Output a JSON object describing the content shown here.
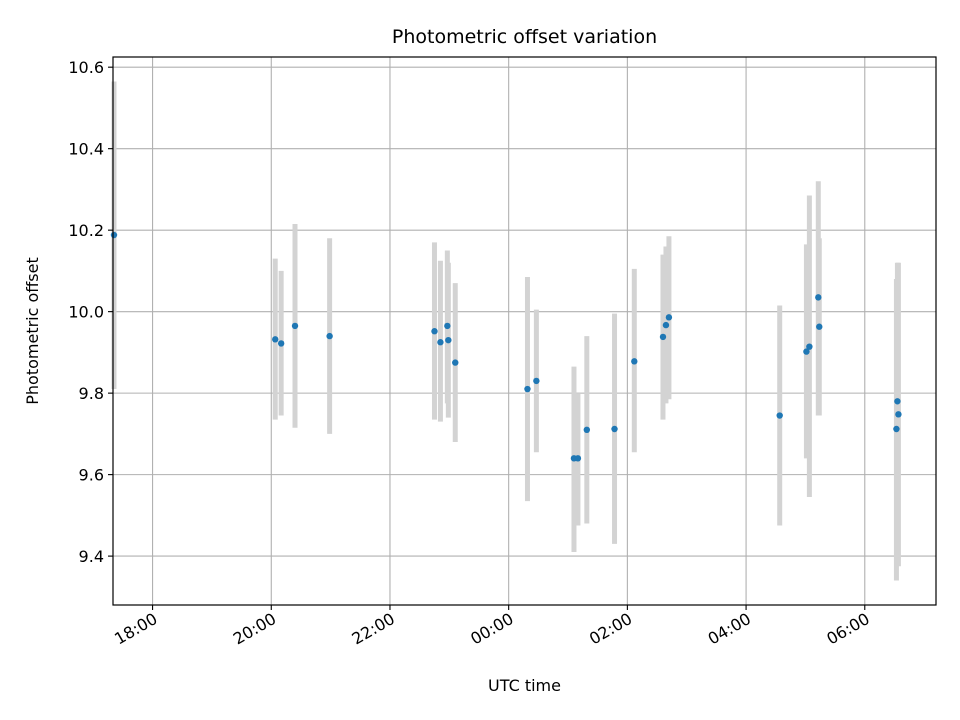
{
  "chart_data": {
    "type": "scatter",
    "title": "Photometric offset variation",
    "xlabel": "UTC time",
    "ylabel": "Photometric offset",
    "x_ticks": [
      "18:00",
      "20:00",
      "22:00",
      "00:00",
      "02:00",
      "04:00",
      "06:00"
    ],
    "y_ticks": [
      "9.4",
      "9.6",
      "9.8",
      "10.0",
      "10.2",
      "10.4",
      "10.6"
    ],
    "xlim": [
      "17:20",
      "07:12"
    ],
    "ylim": [
      9.28,
      10.625
    ],
    "grid": true,
    "marker_color": "#1f77b4",
    "errorbar_color": "#d3d3d3",
    "points": [
      {
        "x": "17:21",
        "y": 10.188,
        "ylow": 9.81,
        "yhigh": 10.565
      },
      {
        "x": "20:04",
        "y": 9.932,
        "ylow": 9.735,
        "yhigh": 10.13
      },
      {
        "x": "20:10",
        "y": 9.922,
        "ylow": 9.745,
        "yhigh": 10.1
      },
      {
        "x": "20:24",
        "y": 9.965,
        "ylow": 9.715,
        "yhigh": 10.215
      },
      {
        "x": "20:59",
        "y": 9.94,
        "ylow": 9.7,
        "yhigh": 10.18
      },
      {
        "x": "22:45",
        "y": 9.952,
        "ylow": 9.735,
        "yhigh": 10.17
      },
      {
        "x": "22:51",
        "y": 9.925,
        "ylow": 9.73,
        "yhigh": 10.125
      },
      {
        "x": "22:58",
        "y": 9.965,
        "ylow": 9.775,
        "yhigh": 10.15
      },
      {
        "x": "22:59",
        "y": 9.93,
        "ylow": 9.74,
        "yhigh": 10.12
      },
      {
        "x": "23:06",
        "y": 9.875,
        "ylow": 9.68,
        "yhigh": 10.07
      },
      {
        "x": "00:19",
        "y": 9.81,
        "ylow": 9.535,
        "yhigh": 10.085
      },
      {
        "x": "00:28",
        "y": 9.83,
        "ylow": 9.655,
        "yhigh": 10.005
      },
      {
        "x": "01:06",
        "y": 9.64,
        "ylow": 9.41,
        "yhigh": 9.865
      },
      {
        "x": "01:10",
        "y": 9.64,
        "ylow": 9.475,
        "yhigh": 9.8
      },
      {
        "x": "01:19",
        "y": 9.71,
        "ylow": 9.48,
        "yhigh": 9.94
      },
      {
        "x": "01:47",
        "y": 9.712,
        "ylow": 9.43,
        "yhigh": 9.995
      },
      {
        "x": "02:07",
        "y": 9.878,
        "ylow": 9.655,
        "yhigh": 10.105
      },
      {
        "x": "02:36",
        "y": 9.938,
        "ylow": 9.735,
        "yhigh": 10.14
      },
      {
        "x": "02:39",
        "y": 9.967,
        "ylow": 9.775,
        "yhigh": 10.16
      },
      {
        "x": "02:42",
        "y": 9.986,
        "ylow": 9.785,
        "yhigh": 10.185
      },
      {
        "x": "04:34",
        "y": 9.745,
        "ylow": 9.475,
        "yhigh": 10.015
      },
      {
        "x": "05:01",
        "y": 9.902,
        "ylow": 9.64,
        "yhigh": 10.165
      },
      {
        "x": "05:04",
        "y": 9.914,
        "ylow": 9.545,
        "yhigh": 10.285
      },
      {
        "x": "05:13",
        "y": 10.035,
        "ylow": 9.745,
        "yhigh": 10.32
      },
      {
        "x": "05:14",
        "y": 9.963,
        "ylow": 9.745,
        "yhigh": 10.18
      },
      {
        "x": "06:32",
        "y": 9.712,
        "ylow": 9.34,
        "yhigh": 10.08
      },
      {
        "x": "06:33",
        "y": 9.78,
        "ylow": 9.445,
        "yhigh": 10.12
      },
      {
        "x": "06:34",
        "y": 9.748,
        "ylow": 9.375,
        "yhigh": 10.12
      }
    ]
  }
}
